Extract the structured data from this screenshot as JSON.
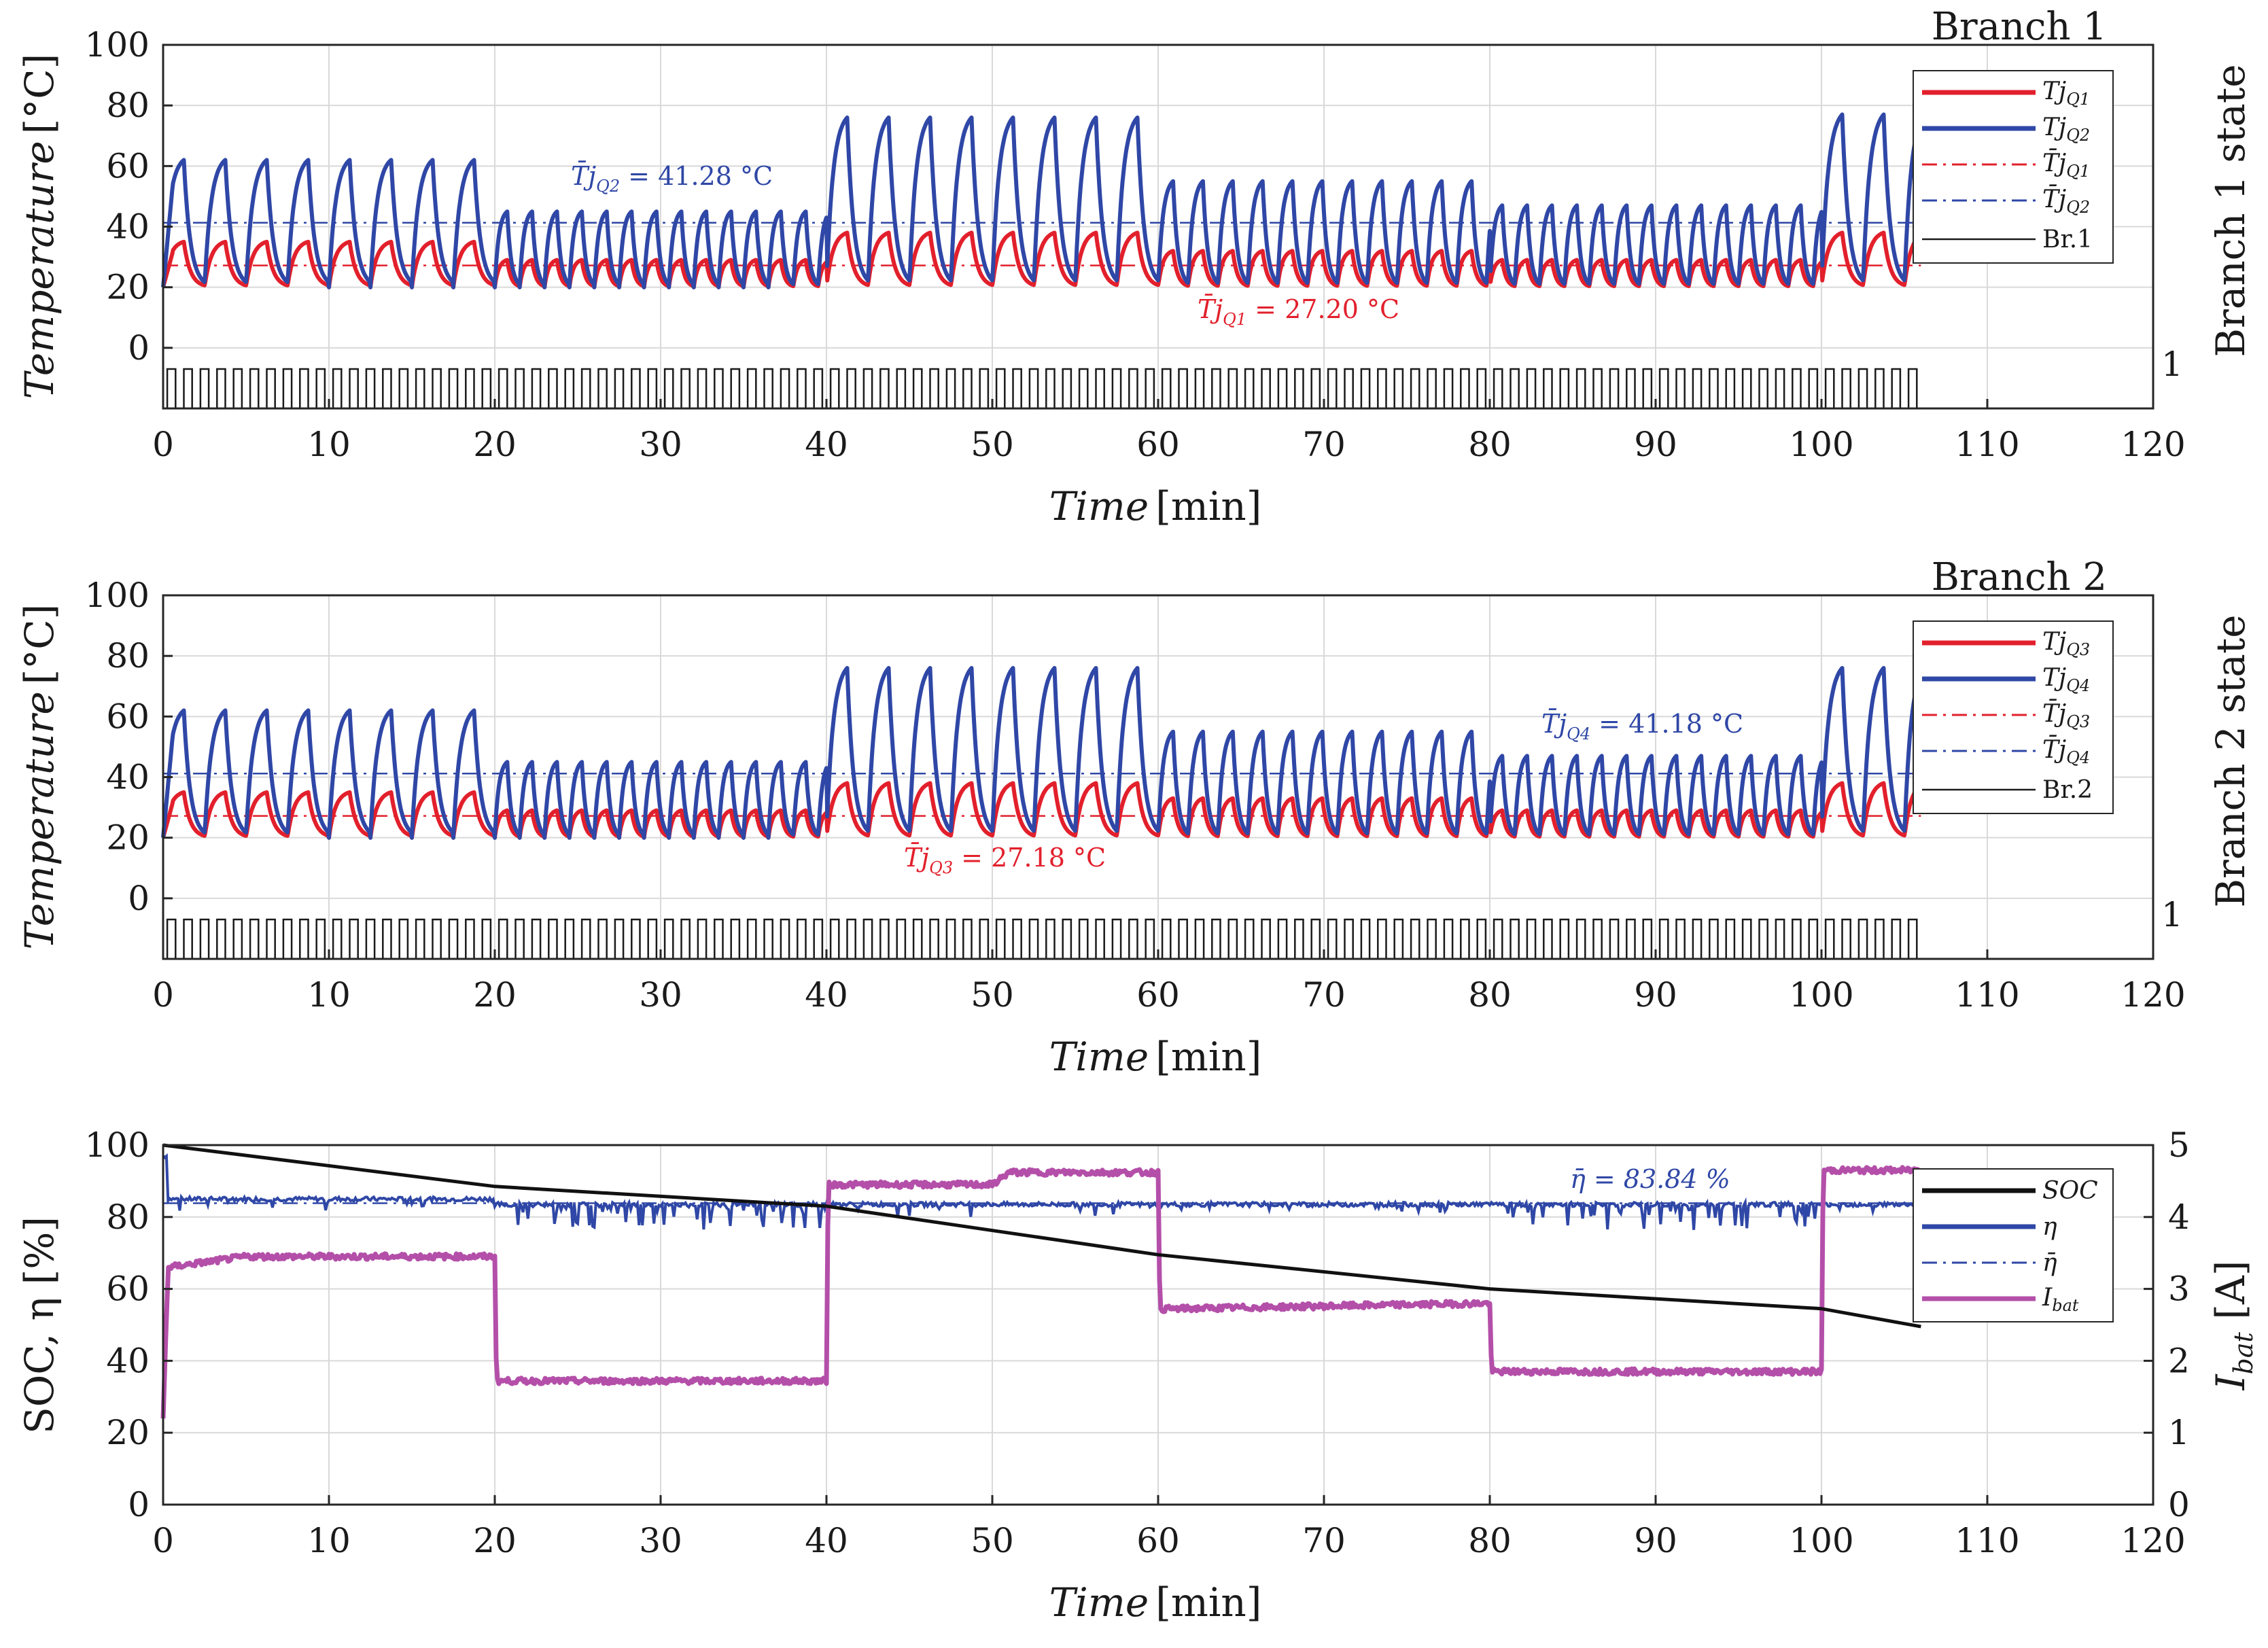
{
  "figure": {
    "panels": [
      {
        "title": "Branch 1",
        "ylabel": "Temperature",
        "ylabel_unit": "[°C]",
        "xlabel": "Time",
        "xlabel_unit": "[min]",
        "right_label": "Branch 1 state",
        "right_tick": "1",
        "annotations": {
          "top_main": "T̄j",
          "top_sub": "Q2",
          "top_value": " = 41.28 °C",
          "bottom_main": "T̄j",
          "bottom_sub": "Q1",
          "bottom_value": " = 27.20 °C"
        },
        "legend": [
          {
            "main": "Tj",
            "sub": "Q1"
          },
          {
            "main": "Tj",
            "sub": "Q2"
          },
          {
            "main": "T̄j",
            "sub": "Q1"
          },
          {
            "main": "T̄j",
            "sub": "Q2"
          },
          {
            "main": "Br.1",
            "sub": ""
          }
        ]
      },
      {
        "title": "Branch 2",
        "ylabel": "Temperature",
        "ylabel_unit": "[°C]",
        "xlabel": "Time",
        "xlabel_unit": "[min]",
        "right_label": "Branch 2 state",
        "right_tick": "1",
        "annotations": {
          "top_main": "T̄j",
          "top_sub": "Q4",
          "top_value": " = 41.18 °C",
          "bottom_main": "T̄j",
          "bottom_sub": "Q3",
          "bottom_value": " = 27.18 °C"
        },
        "legend": [
          {
            "main": "Tj",
            "sub": "Q3"
          },
          {
            "main": "Tj",
            "sub": "Q4"
          },
          {
            "main": "T̄j",
            "sub": "Q3"
          },
          {
            "main": "T̄j",
            "sub": "Q4"
          },
          {
            "main": "Br.2",
            "sub": ""
          }
        ]
      },
      {
        "title": "",
        "ylabel": "SOC, η [%]",
        "xlabel": "Time",
        "xlabel_unit": "[min]",
        "right_label_main": "I",
        "right_label_sub": "bat",
        "right_label_unit": " [A]",
        "annotations": {
          "top_main": "η̄ = 83.84 %"
        },
        "legend": [
          {
            "main": "SOC",
            "sub": ""
          },
          {
            "main": "η",
            "sub": ""
          },
          {
            "main": "η̄",
            "sub": ""
          },
          {
            "main": "I",
            "sub": "bat"
          }
        ]
      }
    ]
  },
  "chart_data": [
    {
      "type": "line",
      "title": "Branch 1",
      "xlabel": "Time [min]",
      "ylabel": "Temperature [°C]",
      "y2label": "Branch 1 state",
      "xlim": [
        0,
        120
      ],
      "ylim": [
        -20,
        100
      ],
      "xticks": [
        0,
        10,
        20,
        30,
        40,
        50,
        60,
        70,
        80,
        90,
        100,
        110,
        120
      ],
      "yticks": [
        0,
        20,
        40,
        60,
        80,
        100
      ],
      "y2ticks": [
        "1"
      ],
      "grid": true,
      "legend_position": "top-right",
      "colors": {
        "q_low": "#e2202c",
        "q_high": "#2f47a6",
        "state": "#1a1a1a"
      },
      "segments": [
        {
          "t_start": 0,
          "t_end": 20,
          "period_min": 2.5,
          "high_peak": 62,
          "low_peak": 35,
          "valley": 20
        },
        {
          "t_start": 20,
          "t_end": 40,
          "period_min": 1.5,
          "high_peak": 45,
          "low_peak": 29,
          "valley": 20
        },
        {
          "t_start": 40,
          "t_end": 60,
          "period_min": 2.5,
          "high_peak": 76,
          "low_peak": 38,
          "valley": 20
        },
        {
          "t_start": 60,
          "t_end": 80,
          "period_min": 1.8,
          "high_peak": 55,
          "low_peak": 32,
          "valley": 20
        },
        {
          "t_start": 80,
          "t_end": 100,
          "period_min": 1.5,
          "high_peak": 47,
          "low_peak": 29,
          "valley": 20
        },
        {
          "t_start": 100,
          "t_end": 106,
          "period_min": 2.5,
          "high_peak": 77,
          "low_peak": 38,
          "valley": 20
        }
      ],
      "series": [
        {
          "name": "Tj_Q1",
          "mean": 27.2
        },
        {
          "name": "Tj_Q2",
          "mean": 41.28
        },
        {
          "name": "mean Tj_Q1",
          "value": 27.2
        },
        {
          "name": "mean Tj_Q2",
          "value": 41.28
        },
        {
          "name": "Br.1",
          "state_high": -7,
          "state_low": -20,
          "period_min": 1.0
        }
      ],
      "t_end_data": 106
    },
    {
      "type": "line",
      "title": "Branch 2",
      "xlabel": "Time [min]",
      "ylabel": "Temperature [°C]",
      "y2label": "Branch 2 state",
      "xlim": [
        0,
        120
      ],
      "ylim": [
        -20,
        100
      ],
      "xticks": [
        0,
        10,
        20,
        30,
        40,
        50,
        60,
        70,
        80,
        90,
        100,
        110,
        120
      ],
      "yticks": [
        0,
        20,
        40,
        60,
        80,
        100
      ],
      "y2ticks": [
        "1"
      ],
      "grid": true,
      "legend_position": "top-right",
      "colors": {
        "q_low": "#e2202c",
        "q_high": "#2f47a6",
        "state": "#1a1a1a"
      },
      "segments": [
        {
          "t_start": 0,
          "t_end": 20,
          "period_min": 2.5,
          "high_peak": 62,
          "low_peak": 35,
          "valley": 20
        },
        {
          "t_start": 20,
          "t_end": 40,
          "period_min": 1.5,
          "high_peak": 45,
          "low_peak": 29,
          "valley": 20
        },
        {
          "t_start": 40,
          "t_end": 60,
          "period_min": 2.5,
          "high_peak": 76,
          "low_peak": 38,
          "valley": 20
        },
        {
          "t_start": 60,
          "t_end": 80,
          "period_min": 1.8,
          "high_peak": 55,
          "low_peak": 33,
          "valley": 20
        },
        {
          "t_start": 80,
          "t_end": 100,
          "period_min": 1.5,
          "high_peak": 47,
          "low_peak": 29,
          "valley": 20
        },
        {
          "t_start": 100,
          "t_end": 106,
          "period_min": 2.5,
          "high_peak": 76,
          "low_peak": 38,
          "valley": 20
        }
      ],
      "series": [
        {
          "name": "Tj_Q3",
          "mean": 27.18
        },
        {
          "name": "Tj_Q4",
          "mean": 41.18
        },
        {
          "name": "mean Tj_Q3",
          "value": 27.18
        },
        {
          "name": "mean Tj_Q4",
          "value": 41.18
        },
        {
          "name": "Br.2",
          "state_high": -7,
          "state_low": -20,
          "period_min": 1.0
        }
      ],
      "t_end_data": 106
    },
    {
      "type": "line",
      "title": "",
      "xlabel": "Time [min]",
      "ylabel": "SOC, η [%]",
      "y2label": "I_bat [A]",
      "xlim": [
        0,
        120
      ],
      "ylim": [
        0,
        100
      ],
      "y2lim": [
        0,
        5
      ],
      "xticks": [
        0,
        10,
        20,
        30,
        40,
        50,
        60,
        70,
        80,
        90,
        100,
        110,
        120
      ],
      "yticks": [
        0,
        20,
        40,
        60,
        80,
        100
      ],
      "y2ticks": [
        0,
        1,
        2,
        3,
        4,
        5
      ],
      "grid": true,
      "legend_position": "top-right",
      "colors": {
        "soc": "#111111",
        "eta": "#2f47a6",
        "ibat": "#b44fa9"
      },
      "series": [
        {
          "name": "SOC",
          "x": [
            0,
            20,
            40,
            60,
            80,
            100,
            106
          ],
          "y": [
            100,
            88.5,
            83,
            69.5,
            60,
            54.5,
            49.5
          ]
        },
        {
          "name": "η",
          "mean_before_20": 85,
          "mean_after_20": 83.5,
          "dip_max_depth": 7
        },
        {
          "name": "η̄",
          "value": 83.84
        },
        {
          "name": "I_bat",
          "x": [
            0,
            0.3,
            5,
            20,
            20.1,
            40,
            40.1,
            50,
            51,
            60,
            60.1,
            80,
            80.1,
            100,
            100.1,
            106
          ],
          "y": [
            1.2,
            3.3,
            3.45,
            3.45,
            1.72,
            1.72,
            4.45,
            4.45,
            4.62,
            4.62,
            2.72,
            2.8,
            1.85,
            1.85,
            4.65,
            4.65
          ]
        }
      ],
      "t_end_data": 106
    }
  ]
}
